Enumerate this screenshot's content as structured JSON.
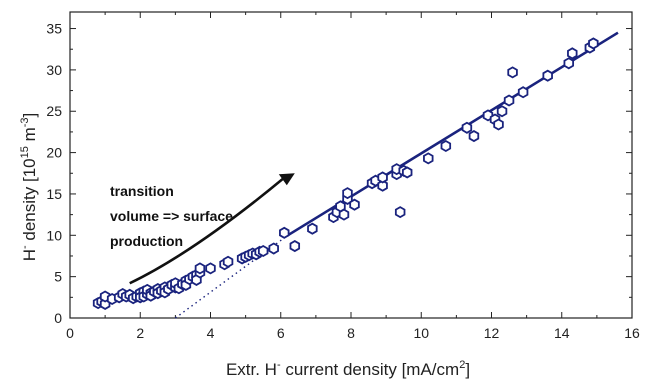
{
  "chart_data": {
    "type": "scatter",
    "xlabel": "Extr. H",
    "xlabel_sup": "-",
    "xlabel_rest": " current density [mA/cm",
    "xlabel_sup2": "2",
    "xlabel_end": "]",
    "ylabel": "H",
    "ylabel_sup": "-",
    "ylabel_rest": " density [10",
    "ylabel_sup2": "15",
    "ylabel_mid": " m",
    "ylabel_sup3": "-3",
    "ylabel_end": "]",
    "xlim": [
      0,
      16
    ],
    "ylim": [
      0,
      37
    ],
    "xticks": [
      0,
      2,
      4,
      6,
      8,
      10,
      12,
      14,
      16
    ],
    "yticks": [
      0,
      5,
      10,
      15,
      20,
      25,
      30,
      35
    ],
    "grid": false,
    "annotation": {
      "lines": [
        "transition",
        "volume => surface",
        "production"
      ],
      "arrow_from": [
        1.7,
        4.2
      ],
      "arrow_to": [
        6.4,
        17.5
      ]
    },
    "fit_line": {
      "x": [
        6.2,
        15.6
      ],
      "y": [
        10.0,
        34.5
      ]
    },
    "extrapolation_line": {
      "x": [
        3.0,
        6.2
      ],
      "y": [
        0.0,
        10.0
      ]
    },
    "marker_color": "#1a237e",
    "line_color": "#1a237e",
    "points": [
      {
        "x": 0.8,
        "y": 1.8
      },
      {
        "x": 0.9,
        "y": 2.0
      },
      {
        "x": 1.0,
        "y": 1.7
      },
      {
        "x": 1.0,
        "y": 2.6
      },
      {
        "x": 1.2,
        "y": 2.3
      },
      {
        "x": 1.4,
        "y": 2.5
      },
      {
        "x": 1.5,
        "y": 2.9
      },
      {
        "x": 1.6,
        "y": 2.6
      },
      {
        "x": 1.7,
        "y": 2.8
      },
      {
        "x": 1.8,
        "y": 2.4
      },
      {
        "x": 1.9,
        "y": 2.6
      },
      {
        "x": 2.0,
        "y": 3.0
      },
      {
        "x": 2.0,
        "y": 2.5
      },
      {
        "x": 2.1,
        "y": 3.2
      },
      {
        "x": 2.1,
        "y": 2.6
      },
      {
        "x": 2.2,
        "y": 2.9
      },
      {
        "x": 2.2,
        "y": 3.4
      },
      {
        "x": 2.3,
        "y": 3.0
      },
      {
        "x": 2.3,
        "y": 2.7
      },
      {
        "x": 2.4,
        "y": 3.2
      },
      {
        "x": 2.5,
        "y": 3.5
      },
      {
        "x": 2.5,
        "y": 3.0
      },
      {
        "x": 2.6,
        "y": 3.3
      },
      {
        "x": 2.7,
        "y": 3.7
      },
      {
        "x": 2.7,
        "y": 3.1
      },
      {
        "x": 2.8,
        "y": 3.5
      },
      {
        "x": 2.9,
        "y": 4.0
      },
      {
        "x": 3.0,
        "y": 3.7
      },
      {
        "x": 3.0,
        "y": 4.2
      },
      {
        "x": 3.1,
        "y": 3.6
      },
      {
        "x": 3.2,
        "y": 4.1
      },
      {
        "x": 3.3,
        "y": 4.5
      },
      {
        "x": 3.3,
        "y": 4.0
      },
      {
        "x": 3.4,
        "y": 4.7
      },
      {
        "x": 3.5,
        "y": 5.0
      },
      {
        "x": 3.6,
        "y": 5.2
      },
      {
        "x": 3.6,
        "y": 4.6
      },
      {
        "x": 3.7,
        "y": 5.5
      },
      {
        "x": 3.7,
        "y": 6.0
      },
      {
        "x": 4.0,
        "y": 6.0
      },
      {
        "x": 4.4,
        "y": 6.5
      },
      {
        "x": 4.5,
        "y": 6.8
      },
      {
        "x": 4.9,
        "y": 7.2
      },
      {
        "x": 5.0,
        "y": 7.4
      },
      {
        "x": 5.1,
        "y": 7.6
      },
      {
        "x": 5.2,
        "y": 7.8
      },
      {
        "x": 5.3,
        "y": 7.7
      },
      {
        "x": 5.4,
        "y": 8.0
      },
      {
        "x": 5.5,
        "y": 8.1
      },
      {
        "x": 5.8,
        "y": 8.4
      },
      {
        "x": 6.1,
        "y": 10.3
      },
      {
        "x": 6.4,
        "y": 8.7
      },
      {
        "x": 6.9,
        "y": 10.8
      },
      {
        "x": 7.5,
        "y": 12.2
      },
      {
        "x": 7.6,
        "y": 12.8
      },
      {
        "x": 7.7,
        "y": 13.5
      },
      {
        "x": 7.8,
        "y": 12.5
      },
      {
        "x": 7.9,
        "y": 14.4
      },
      {
        "x": 7.9,
        "y": 15.1
      },
      {
        "x": 8.1,
        "y": 13.7
      },
      {
        "x": 8.6,
        "y": 16.3
      },
      {
        "x": 8.7,
        "y": 16.6
      },
      {
        "x": 8.9,
        "y": 16.0
      },
      {
        "x": 8.9,
        "y": 17.0
      },
      {
        "x": 9.3,
        "y": 17.4
      },
      {
        "x": 9.3,
        "y": 18.0
      },
      {
        "x": 9.4,
        "y": 12.8
      },
      {
        "x": 9.5,
        "y": 17.8
      },
      {
        "x": 9.6,
        "y": 17.6
      },
      {
        "x": 10.2,
        "y": 19.3
      },
      {
        "x": 10.7,
        "y": 20.8
      },
      {
        "x": 11.3,
        "y": 23.0
      },
      {
        "x": 11.5,
        "y": 22.0
      },
      {
        "x": 11.9,
        "y": 24.5
      },
      {
        "x": 12.1,
        "y": 24.0
      },
      {
        "x": 12.2,
        "y": 23.4
      },
      {
        "x": 12.3,
        "y": 25.0
      },
      {
        "x": 12.5,
        "y": 26.3
      },
      {
        "x": 12.6,
        "y": 29.7
      },
      {
        "x": 12.9,
        "y": 27.3
      },
      {
        "x": 13.6,
        "y": 29.3
      },
      {
        "x": 14.2,
        "y": 30.8
      },
      {
        "x": 14.3,
        "y": 32.0
      },
      {
        "x": 14.8,
        "y": 32.7
      },
      {
        "x": 14.9,
        "y": 33.2
      }
    ]
  }
}
